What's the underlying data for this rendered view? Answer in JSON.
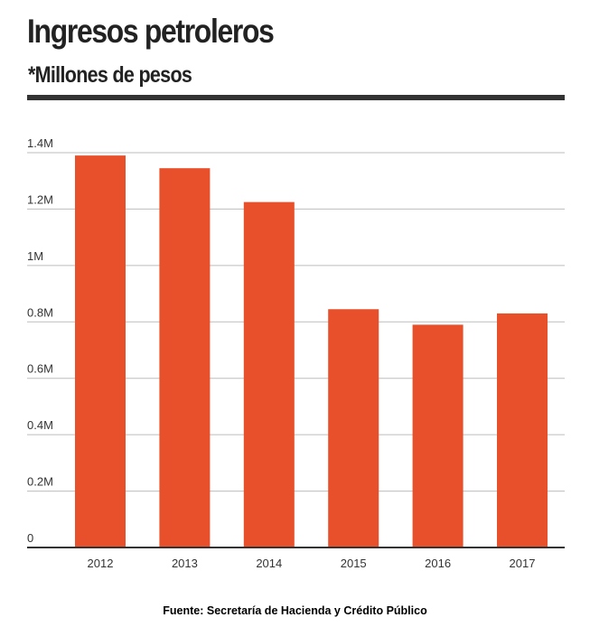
{
  "chart_data": {
    "type": "bar",
    "title": "Ingresos petroleros",
    "subtitle": "*Millones de pesos",
    "categories": [
      "2012",
      "2013",
      "2014",
      "2015",
      "2016",
      "2017"
    ],
    "values": [
      1.39,
      1.345,
      1.225,
      0.845,
      0.79,
      0.83
    ],
    "ylim": [
      0,
      1.4
    ],
    "yticks": [
      {
        "value": 0,
        "label": "0"
      },
      {
        "value": 0.2,
        "label": "0.2M"
      },
      {
        "value": 0.4,
        "label": "0.4M"
      },
      {
        "value": 0.6,
        "label": "0.6M"
      },
      {
        "value": 0.8,
        "label": "0.8M"
      },
      {
        "value": 1.0,
        "label": "1M"
      },
      {
        "value": 1.2,
        "label": "1.2M"
      },
      {
        "value": 1.4,
        "label": "1.4M"
      }
    ],
    "xlabel": "",
    "ylabel": "",
    "grid": true,
    "bar_color": "#e8502c",
    "source": "Fuente: Secretaría de Hacienda y Crédito Público"
  }
}
